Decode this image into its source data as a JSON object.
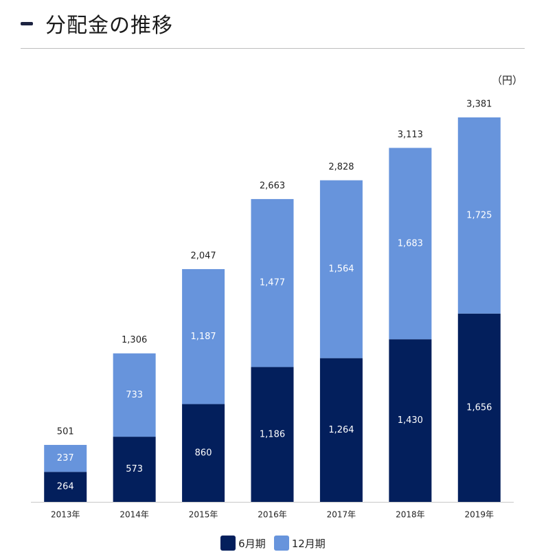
{
  "heading": {
    "title": "分配金の推移"
  },
  "unit_label": "（円）",
  "colors": {
    "h1": "#031f5c",
    "h2": "#6794dc",
    "axis": "#c8c8c8"
  },
  "chart_data": {
    "type": "bar",
    "stacked": true,
    "categories": [
      "2013年",
      "2014年",
      "2015年",
      "2016年",
      "2017年",
      "2018年",
      "2019年"
    ],
    "series": [
      {
        "name": "6月期",
        "values": [
          264,
          573,
          860,
          1186,
          1264,
          1430,
          1656
        ],
        "value_labels": [
          "264",
          "573",
          "860",
          "1,186",
          "1,264",
          "1,430",
          "1,656"
        ]
      },
      {
        "name": "12月期",
        "values": [
          237,
          733,
          1187,
          1477,
          1564,
          1683,
          1725
        ],
        "value_labels": [
          "237",
          "733",
          "1,187",
          "1,477",
          "1,564",
          "1,683",
          "1,725"
        ]
      }
    ],
    "totals": [
      501,
      1306,
      2047,
      2663,
      2828,
      3113,
      3381
    ],
    "total_labels": [
      "501",
      "1,306",
      "2,047",
      "2,663",
      "2,828",
      "3,113",
      "3,381"
    ],
    "ylim": [
      0,
      3500
    ],
    "grid": false,
    "legend_position": "bottom"
  }
}
